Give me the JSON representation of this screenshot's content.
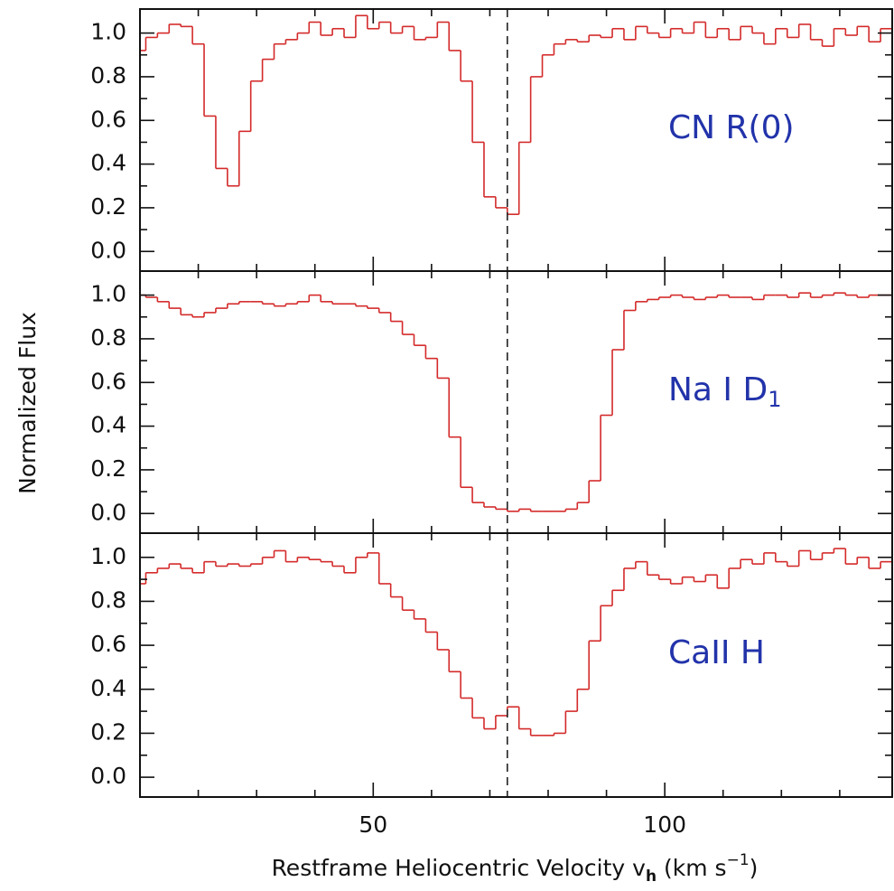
{
  "figure": {
    "ylabel": "Normalized Flux",
    "xlabel": {
      "text": "Restframe Heliocentric Velocity v",
      "subscript": "h",
      "unit_open": " (km s",
      "superscript": "−1",
      "unit_close": ")"
    },
    "dashed_line_x": 73
  },
  "chart_data": [
    {
      "type": "step",
      "label": "CN R(0)",
      "color": "#d42a2a",
      "label_color": "#2233aa",
      "xlim": [
        10,
        139
      ],
      "ylim": [
        -0.09,
        1.11
      ],
      "xticks": [
        50,
        100
      ],
      "xminorticks": [
        20,
        30,
        40,
        60,
        70,
        80,
        90,
        110,
        120,
        130
      ],
      "yticks": [
        {
          "value": 0,
          "label": "0.0"
        },
        0.2,
        0.4,
        0.6,
        0.8,
        {
          "value": 1,
          "label": "1.0"
        }
      ],
      "yminorticks": [
        0.1,
        0.3,
        0.5,
        0.7,
        0.9
      ],
      "x": [
        10,
        12,
        14,
        16,
        18,
        20,
        22,
        24,
        26,
        28,
        30,
        32,
        34,
        36,
        38,
        40,
        42,
        44,
        46,
        48,
        50,
        52,
        54,
        56,
        58,
        60,
        62,
        64,
        66,
        68,
        70,
        72,
        74,
        76,
        78,
        80,
        82,
        84,
        86,
        88,
        90,
        92,
        94,
        96,
        98,
        100,
        102,
        104,
        106,
        108,
        110,
        112,
        114,
        116,
        118,
        120,
        122,
        124,
        126,
        128,
        130,
        132,
        134,
        136,
        138
      ],
      "values": [
        0.92,
        0.98,
        1.0,
        1.04,
        1.03,
        0.95,
        0.62,
        0.38,
        0.3,
        0.55,
        0.78,
        0.88,
        0.95,
        0.97,
        1.0,
        1.05,
        0.99,
        1.02,
        0.98,
        1.08,
        1.02,
        1.05,
        1.0,
        1.03,
        0.97,
        0.98,
        1.05,
        0.92,
        0.78,
        0.5,
        0.25,
        0.2,
        0.17,
        0.5,
        0.8,
        0.9,
        0.95,
        0.97,
        0.96,
        0.99,
        0.98,
        1.02,
        0.97,
        1.03,
        1.0,
        0.98,
        1.02,
        1.0,
        1.05,
        0.98,
        1.02,
        0.97,
        1.03,
        1.0,
        0.95,
        1.02,
        0.98,
        1.04,
        0.97,
        0.94,
        1.02,
        0.99,
        1.03,
        0.96,
        1.02
      ]
    },
    {
      "type": "step",
      "label": "Na I D",
      "label_subscript": "1",
      "color": "#d42a2a",
      "label_color": "#2233aa",
      "xlim": [
        10,
        139
      ],
      "ylim": [
        -0.09,
        1.11
      ],
      "xticks": [
        50,
        100
      ],
      "xminorticks": [
        20,
        30,
        40,
        60,
        70,
        80,
        90,
        110,
        120,
        130
      ],
      "yticks": [
        {
          "value": 0,
          "label": "0.0"
        },
        0.2,
        0.4,
        0.6,
        0.8,
        {
          "value": 1,
          "label": "1.0"
        }
      ],
      "yminorticks": [
        0.1,
        0.3,
        0.5,
        0.7,
        0.9
      ],
      "x": [
        10,
        12,
        14,
        16,
        18,
        20,
        22,
        24,
        26,
        28,
        30,
        32,
        34,
        36,
        38,
        40,
        42,
        44,
        46,
        48,
        50,
        52,
        54,
        56,
        58,
        60,
        62,
        64,
        66,
        68,
        70,
        72,
        74,
        76,
        78,
        80,
        82,
        84,
        86,
        88,
        90,
        92,
        94,
        96,
        98,
        100,
        102,
        104,
        106,
        108,
        110,
        112,
        114,
        116,
        118,
        120,
        122,
        124,
        126,
        128,
        130,
        132,
        134,
        136,
        138
      ],
      "values": [
        1.0,
        0.99,
        0.97,
        0.94,
        0.91,
        0.9,
        0.92,
        0.94,
        0.96,
        0.97,
        0.97,
        0.96,
        0.95,
        0.96,
        0.97,
        1.0,
        0.97,
        0.96,
        0.96,
        0.95,
        0.94,
        0.92,
        0.88,
        0.82,
        0.77,
        0.71,
        0.62,
        0.35,
        0.12,
        0.05,
        0.03,
        0.02,
        0.01,
        0.02,
        0.01,
        0.01,
        0.01,
        0.02,
        0.05,
        0.15,
        0.45,
        0.75,
        0.93,
        0.97,
        0.98,
        0.99,
        1.0,
        0.99,
        0.98,
        0.99,
        1.0,
        0.99,
        0.99,
        0.98,
        1.0,
        1.0,
        0.99,
        1.01,
        0.99,
        1.0,
        1.01,
        1.0,
        0.99,
        1.0,
        1.0
      ]
    },
    {
      "type": "step",
      "label": "CaII H",
      "color": "#d42a2a",
      "label_color": "#2233aa",
      "xlim": [
        10,
        139
      ],
      "ylim": [
        -0.09,
        1.11
      ],
      "xticks": [
        50,
        100
      ],
      "xminorticks": [
        20,
        30,
        40,
        60,
        70,
        80,
        90,
        110,
        120,
        130
      ],
      "yticks": [
        {
          "value": 0,
          "label": "0.0"
        },
        0.2,
        0.4,
        0.6,
        0.8,
        {
          "value": 1,
          "label": "1.0"
        }
      ],
      "yminorticks": [
        0.1,
        0.3,
        0.5,
        0.7,
        0.9
      ],
      "x": [
        10,
        12,
        14,
        16,
        18,
        20,
        22,
        24,
        26,
        28,
        30,
        32,
        34,
        36,
        38,
        40,
        42,
        44,
        46,
        48,
        50,
        52,
        54,
        56,
        58,
        60,
        62,
        64,
        66,
        68,
        70,
        72,
        74,
        76,
        78,
        80,
        82,
        84,
        86,
        88,
        90,
        92,
        94,
        96,
        98,
        100,
        102,
        104,
        106,
        108,
        110,
        112,
        114,
        116,
        118,
        120,
        122,
        124,
        126,
        128,
        130,
        132,
        134,
        136,
        138
      ],
      "values": [
        0.88,
        0.93,
        0.95,
        0.97,
        0.95,
        0.93,
        0.98,
        0.96,
        0.97,
        0.96,
        0.97,
        1.0,
        1.03,
        0.98,
        1.0,
        0.99,
        0.98,
        0.96,
        0.93,
        1.0,
        1.02,
        0.88,
        0.82,
        0.76,
        0.72,
        0.66,
        0.58,
        0.48,
        0.36,
        0.27,
        0.22,
        0.28,
        0.32,
        0.22,
        0.19,
        0.19,
        0.2,
        0.3,
        0.4,
        0.62,
        0.78,
        0.85,
        0.95,
        0.98,
        0.92,
        0.9,
        0.88,
        0.91,
        0.89,
        0.92,
        0.86,
        0.95,
        0.99,
        0.97,
        1.02,
        0.98,
        0.96,
        1.03,
        0.99,
        1.02,
        1.04,
        0.97,
        1.0,
        0.95,
        0.98
      ]
    }
  ]
}
